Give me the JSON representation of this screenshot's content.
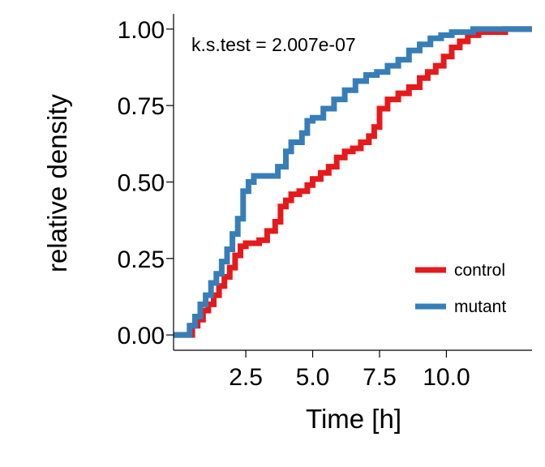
{
  "chart_data": {
    "type": "line",
    "step": true,
    "title": "",
    "xlabel": "Time [h]",
    "ylabel": "relative density",
    "xlim": [
      -0.2,
      13.2
    ],
    "ylim": [
      -0.05,
      1.05
    ],
    "xticks": [
      2.5,
      5.0,
      7.5,
      10.0
    ],
    "xtick_labels": [
      "2.5",
      "5.0",
      "7.5",
      "10.0"
    ],
    "yticks": [
      0.0,
      0.25,
      0.5,
      0.75,
      1.0
    ],
    "ytick_labels": [
      "0.00",
      "0.25",
      "0.50",
      "0.75",
      "1.00"
    ],
    "grid": false,
    "legend_position": "bottom-right",
    "annotation": "k.s.test = 2.007e-07",
    "series": [
      {
        "name": "control",
        "color": "#e41a1c",
        "x": [
          -0.2,
          0.4,
          0.5,
          0.7,
          0.9,
          1.1,
          1.3,
          1.5,
          1.7,
          1.9,
          2.1,
          2.3,
          2.5,
          2.7,
          3.0,
          3.3,
          3.6,
          3.8,
          4.0,
          4.2,
          4.5,
          4.8,
          5.0,
          5.3,
          5.6,
          5.9,
          6.2,
          6.5,
          6.8,
          7.1,
          7.3,
          7.5,
          7.8,
          8.2,
          8.6,
          9.0,
          9.3,
          9.6,
          9.9,
          10.2,
          10.5,
          10.8,
          11.2,
          11.8,
          12.2,
          13.2
        ],
        "y": [
          0.0,
          0.0,
          0.03,
          0.05,
          0.08,
          0.1,
          0.13,
          0.16,
          0.19,
          0.22,
          0.26,
          0.29,
          0.3,
          0.3,
          0.31,
          0.34,
          0.37,
          0.42,
          0.44,
          0.46,
          0.47,
          0.49,
          0.51,
          0.53,
          0.55,
          0.58,
          0.6,
          0.61,
          0.63,
          0.65,
          0.68,
          0.74,
          0.77,
          0.79,
          0.81,
          0.84,
          0.86,
          0.88,
          0.91,
          0.94,
          0.96,
          0.98,
          0.99,
          0.99,
          1.0,
          1.0
        ]
      },
      {
        "name": "mutant",
        "color": "#377eb8",
        "x": [
          -0.2,
          0.3,
          0.4,
          0.6,
          0.8,
          1.0,
          1.2,
          1.4,
          1.6,
          1.8,
          2.0,
          2.2,
          2.4,
          2.6,
          2.8,
          3.3,
          3.7,
          4.0,
          4.2,
          4.6,
          4.8,
          5.0,
          5.4,
          5.8,
          6.2,
          6.6,
          7.0,
          7.4,
          7.8,
          8.2,
          8.6,
          9.0,
          9.4,
          9.8,
          10.2,
          10.6,
          11.0,
          13.2
        ],
        "y": [
          0.0,
          0.0,
          0.03,
          0.06,
          0.1,
          0.13,
          0.17,
          0.2,
          0.24,
          0.28,
          0.33,
          0.38,
          0.47,
          0.5,
          0.52,
          0.52,
          0.55,
          0.6,
          0.63,
          0.66,
          0.7,
          0.71,
          0.74,
          0.77,
          0.8,
          0.83,
          0.85,
          0.86,
          0.88,
          0.9,
          0.93,
          0.95,
          0.97,
          0.98,
          0.99,
          0.99,
          1.0,
          1.0
        ]
      }
    ]
  }
}
